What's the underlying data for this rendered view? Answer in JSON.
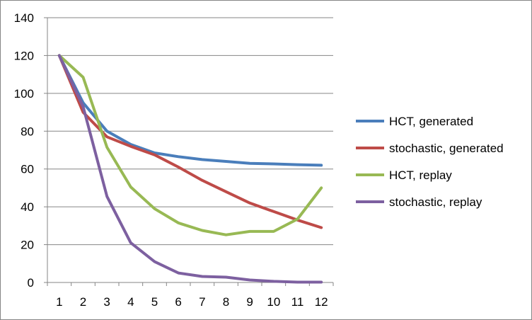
{
  "chart_data": {
    "type": "line",
    "title": "",
    "xlabel": "",
    "ylabel": "",
    "categories": [
      "1",
      "2",
      "3",
      "4",
      "5",
      "6",
      "7",
      "8",
      "9",
      "10",
      "11",
      "12"
    ],
    "ylim": [
      0,
      140
    ],
    "yticks": [
      "0",
      "20",
      "40",
      "60",
      "80",
      "100",
      "120",
      "140"
    ],
    "grid": "horizontal",
    "legend_position": "right",
    "series": [
      {
        "name": "HCT, generated",
        "color": "#4a7ebb",
        "values": [
          120,
          95,
          80,
          73,
          68.5,
          66.5,
          65,
          64,
          63,
          62.7,
          62.3,
          62
        ]
      },
      {
        "name": "stochastic, generated",
        "color": "#be4b48",
        "values": [
          120,
          90,
          77,
          72,
          67.5,
          61,
          54,
          48,
          42,
          37.5,
          33,
          29
        ]
      },
      {
        "name": "HCT, replay",
        "color": "#98b954",
        "values": [
          120,
          108.5,
          71.5,
          50.5,
          39,
          31.5,
          27.5,
          25.2,
          27,
          27,
          33.5,
          50
        ]
      },
      {
        "name": "stochastic, replay",
        "color": "#7d60a0",
        "values": [
          120,
          93,
          45.5,
          21,
          11,
          5,
          3.2,
          2.8,
          1.3,
          0.6,
          0.2,
          0.2
        ]
      }
    ]
  }
}
